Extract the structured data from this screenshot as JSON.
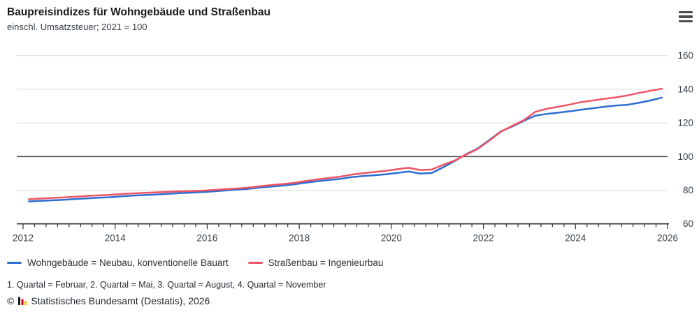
{
  "header": {
    "title": "Baupreisindizes für Wohngebäude und Straßenbau",
    "subtitle": "einschl. Umsatzsteuer; 2021 = 100",
    "menu_icon": "hamburger-icon"
  },
  "chart_data": {
    "type": "line",
    "title": "Baupreisindizes für Wohngebäude und Straßenbau",
    "subtitle": "einschl. Umsatzsteuer; 2021 = 100",
    "xlabel": "",
    "ylabel": "",
    "xlim": [
      2012,
      2026
    ],
    "ylim": [
      60,
      160
    ],
    "x_tick_years": [
      2012,
      2014,
      2016,
      2018,
      2020,
      2022,
      2024,
      2026
    ],
    "y_ticks": [
      60,
      80,
      100,
      120,
      140,
      160
    ],
    "reference_line": 100,
    "grid": "horizontal",
    "legend_position": "bottom",
    "x_start": 2012.125,
    "x_step": 0.25,
    "x_unit": "quarter",
    "series": [
      {
        "name": "Wohngebäude = Neubau, konventionelle Bauart",
        "color": "#2b6ed0",
        "values": [
          73.3,
          73.7,
          74.0,
          74.3,
          74.7,
          75.1,
          75.5,
          75.8,
          76.3,
          76.8,
          77.1,
          77.4,
          77.8,
          78.2,
          78.5,
          78.9,
          79.3,
          79.8,
          80.3,
          80.8,
          81.5,
          82.1,
          82.7,
          83.4,
          84.4,
          85.3,
          86.0,
          86.7,
          87.7,
          88.4,
          88.9,
          89.4,
          90.3,
          91.1,
          89.9,
          90.2,
          93.6,
          97.3,
          101.4,
          104.8,
          109.8,
          114.9,
          117.9,
          121.2,
          124.3,
          125.3,
          126.1,
          126.9,
          127.9,
          128.7,
          129.6,
          130.3,
          130.8,
          131.9,
          133.3,
          135.0
        ]
      },
      {
        "name": "Straßenbau = Ingenieurbau",
        "color": "#ee5466",
        "values": [
          74.6,
          75.0,
          75.4,
          75.7,
          76.1,
          76.6,
          76.9,
          77.2,
          77.7,
          78.1,
          78.4,
          78.7,
          79.0,
          79.3,
          79.5,
          79.7,
          80.1,
          80.6,
          81.0,
          81.5,
          82.3,
          83.0,
          83.6,
          84.3,
          85.4,
          86.4,
          87.2,
          88.0,
          89.2,
          90.1,
          90.8,
          91.5,
          92.5,
          93.3,
          92.0,
          92.3,
          95.0,
          97.6,
          101.2,
          104.5,
          109.4,
          114.7,
          118.2,
          121.6,
          126.6,
          128.4,
          129.6,
          130.9,
          132.4,
          133.3,
          134.3,
          135.2,
          136.3,
          137.8,
          139.1,
          140.3
        ]
      }
    ]
  },
  "footnotes": {
    "quarters": "1. Quartal = Februar, 2. Quartal = Mai, 3. Quartal = August, 4. Quartal = November",
    "copyright_symbol": "©",
    "copyright": "Statistisches Bundesamt (Destatis), 2026"
  },
  "colors": {
    "axis": "#333333",
    "grid": "#dcdcdc",
    "reference_line": "#4d4d4d",
    "tick_text": "#39424a",
    "logo_bars": [
      "#1a1a1a",
      "#e2001a",
      "#f5c400"
    ]
  }
}
